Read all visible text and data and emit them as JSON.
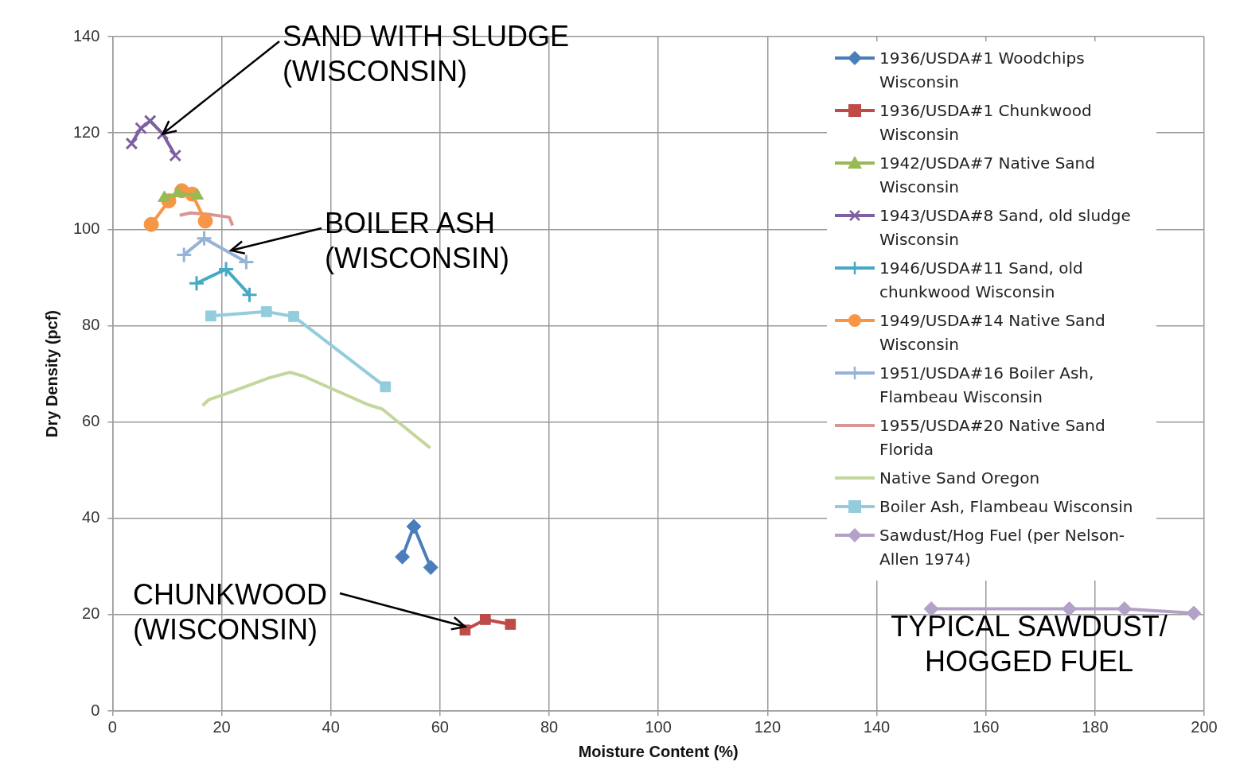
{
  "chart_data": {
    "type": "line",
    "xlabel": "Moisture Content (%)",
    "ylabel": "Dry Density (pcf)",
    "xlim": [
      0,
      200
    ],
    "xticks": [
      0,
      20,
      40,
      60,
      80,
      100,
      120,
      140,
      160,
      180,
      200
    ],
    "ylim": [
      0,
      140
    ],
    "yticks": [
      0,
      20,
      40,
      60,
      80,
      100,
      120,
      140
    ],
    "grid": true,
    "legend": "top right",
    "series": [
      {
        "name": "1936/USDA#1 Woodchips Wisconsin",
        "color": "#4a7ebb",
        "marker": "diamond",
        "x": [
          53.1,
          55.2,
          58.3
        ],
        "values": [
          32.0,
          38.3,
          29.8
        ]
      },
      {
        "name": "1936/USDA#1 Chunkwood Wisconsin",
        "color": "#be4b48",
        "marker": "square",
        "x": [
          64.6,
          68.3,
          72.9
        ],
        "values": [
          16.8,
          19.0,
          18.0
        ]
      },
      {
        "name": "1942/USDA#7 Native Sand Wisconsin",
        "color": "#98b954",
        "marker": "triangle",
        "x": [
          9.5,
          12.0,
          15.5
        ],
        "values": [
          106.5,
          107.5,
          107.0
        ]
      },
      {
        "name": "1943/USDA#8 Sand, old sludge Wisconsin",
        "color": "#7d60a0",
        "marker": "x",
        "x": [
          3.5,
          5.2,
          6.9,
          9.2,
          11.5
        ],
        "values": [
          117.8,
          121.0,
          122.5,
          119.8,
          115.3
        ]
      },
      {
        "name": "1946/USDA#11 Sand, old chunkwood Wisconsin",
        "color": "#46aac5",
        "marker": "cross",
        "x": [
          15.4,
          20.8,
          25.1
        ],
        "values": [
          88.8,
          91.7,
          86.4
        ]
      },
      {
        "name": "1949/USDA#14 Native Sand Wisconsin",
        "color": "#f79646",
        "marker": "circle",
        "x": [
          7.1,
          10.3,
          12.7,
          14.6,
          17.0
        ],
        "values": [
          101.0,
          105.9,
          108.0,
          107.3,
          101.7
        ]
      },
      {
        "name": "1951/USDA#16 Boiler Ash, Flambeau Wisconsin",
        "color": "#95b3d7",
        "marker": "cross",
        "x": [
          13.1,
          16.8,
          24.5
        ],
        "values": [
          94.7,
          98.1,
          93.2
        ]
      },
      {
        "name": "1955/USDA#20 Native Sand Florida",
        "color": "#d99694",
        "marker": "none",
        "x": [
          12.3,
          14.3,
          17.6,
          21.4,
          22.0
        ],
        "values": [
          102.9,
          103.4,
          103.1,
          102.5,
          100.8
        ]
      },
      {
        "name": "Native Sand Oregon",
        "color": "#c3d69b",
        "marker": "none",
        "x": [
          16.5,
          17.6,
          20.7,
          28.8,
          32.5,
          35.0,
          46.8,
          49.4,
          58.2
        ],
        "values": [
          63.4,
          64.6,
          65.8,
          69.2,
          70.3,
          69.5,
          63.6,
          62.7,
          54.6
        ]
      },
      {
        "name": "Boiler Ash, Flambeau Wisconsin",
        "color": "#93cddd",
        "marker": "square",
        "x": [
          18.0,
          28.2,
          33.2,
          50.0
        ],
        "values": [
          82.0,
          82.9,
          81.9,
          67.3
        ]
      },
      {
        "name": "Sawdust/Hog Fuel (per Nelson-Allen 1974)",
        "color": "#b3a2c7",
        "marker": "diamond",
        "x": [
          150.0,
          175.3,
          185.4,
          198.1
        ],
        "values": [
          21.2,
          21.2,
          21.2,
          20.3
        ]
      }
    ],
    "annotations": [
      {
        "text": "SAND WITH SLUDGE\n(WISCONSIN)",
        "x": 9.2,
        "y": 119.8
      },
      {
        "text": "BOILER ASH\n(WISCONSIN)",
        "x": 21.7,
        "y": 95.6
      },
      {
        "text": "CHUNKWOOD\n(WISCONSIN)",
        "x": 64.6,
        "y": 17.5
      },
      "TYPICAL SAWDUST/\nHOGGED FUEL"
    ]
  }
}
